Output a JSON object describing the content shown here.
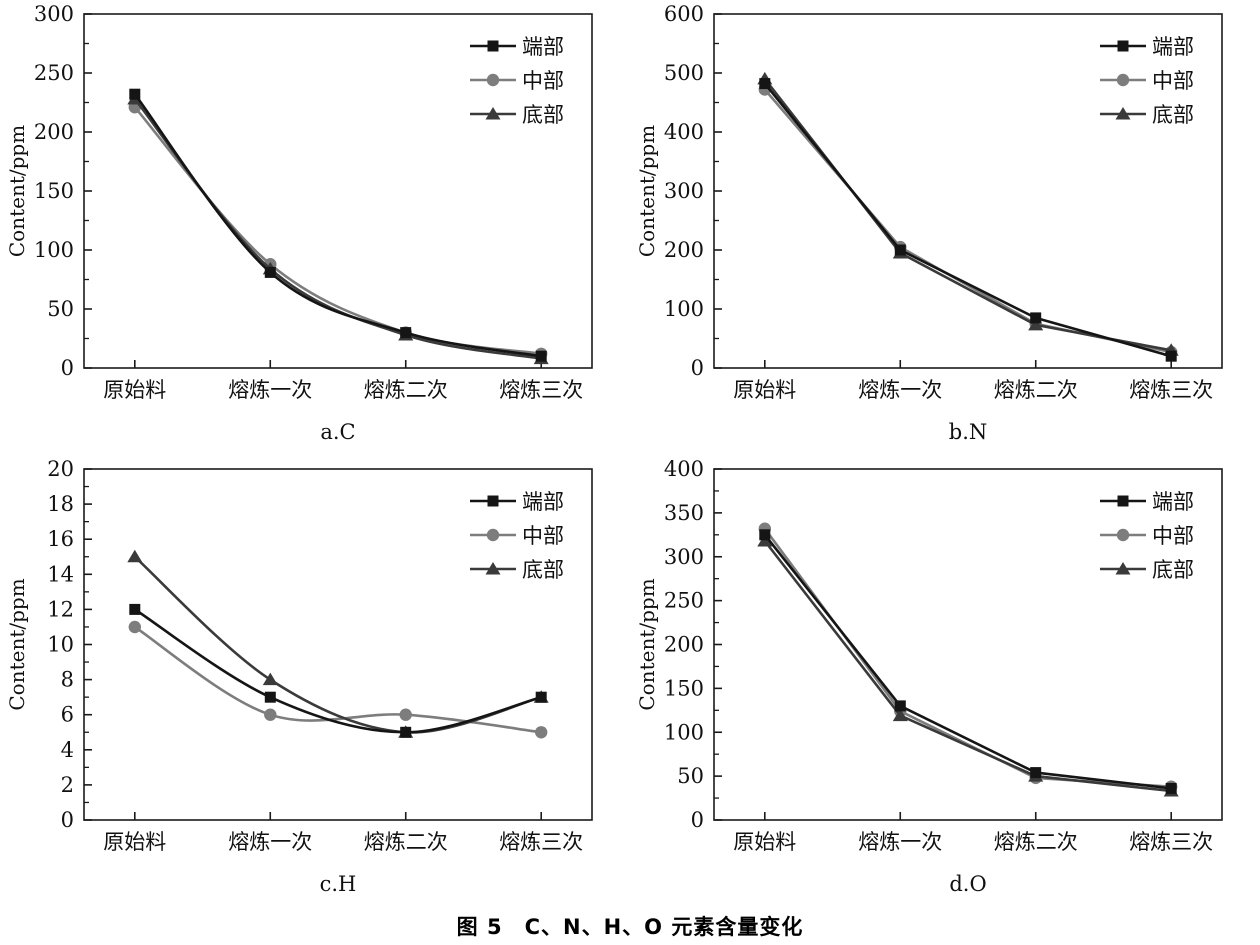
{
  "figure": {
    "caption": "图 5　C、N、H、O 元素含量变化"
  },
  "axis": {
    "ylabel": "Content/ppm",
    "categories": [
      "原始料",
      "熔炼一次",
      "熔炼二次",
      "熔炼三次"
    ]
  },
  "legend": {
    "labels": [
      "端部",
      "中部",
      "底部"
    ]
  },
  "colors": {
    "duanbu": "#151515",
    "zhongbu": "#7d7d7d",
    "dibu": "#3a3a3a",
    "axis": "#1a1a1a"
  },
  "chart_data": [
    {
      "type": "line",
      "subtitle": "a.C",
      "element": "C",
      "ylabel": "Content/ppm",
      "categories": [
        "原始料",
        "熔炼一次",
        "熔炼二次",
        "熔炼三次"
      ],
      "ylim": [
        0,
        300
      ],
      "ytick": 50,
      "smooth": true,
      "grid": false,
      "legend_position": "top-right",
      "series": [
        {
          "name": "端部",
          "marker": "square",
          "color": "#151515",
          "values": [
            232,
            81,
            30,
            10
          ]
        },
        {
          "name": "中部",
          "marker": "circle",
          "color": "#7d7d7d",
          "values": [
            221,
            88,
            30,
            12
          ]
        },
        {
          "name": "底部",
          "marker": "triangle",
          "color": "#3a3a3a",
          "values": [
            228,
            84,
            28,
            8
          ]
        }
      ]
    },
    {
      "type": "line",
      "subtitle": "b.N",
      "element": "N",
      "ylabel": "Content/ppm",
      "categories": [
        "原始料",
        "熔炼一次",
        "熔炼二次",
        "熔炼三次"
      ],
      "ylim": [
        0,
        600
      ],
      "ytick": 100,
      "smooth": false,
      "grid": false,
      "legend_position": "top-right",
      "series": [
        {
          "name": "端部",
          "marker": "square",
          "color": "#151515",
          "values": [
            482,
            200,
            85,
            20
          ]
        },
        {
          "name": "中部",
          "marker": "circle",
          "color": "#7d7d7d",
          "values": [
            472,
            205,
            75,
            27
          ]
        },
        {
          "name": "底部",
          "marker": "triangle",
          "color": "#3a3a3a",
          "values": [
            490,
            195,
            73,
            30
          ]
        }
      ]
    },
    {
      "type": "line",
      "subtitle": "c.H",
      "element": "H",
      "ylabel": "Content/ppm",
      "categories": [
        "原始料",
        "熔炼一次",
        "熔炼二次",
        "熔炼三次"
      ],
      "ylim": [
        0,
        20
      ],
      "ytick": 2,
      "smooth": true,
      "grid": false,
      "legend_position": "top-right",
      "series": [
        {
          "name": "端部",
          "marker": "square",
          "color": "#151515",
          "values": [
            12,
            7,
            5,
            7
          ]
        },
        {
          "name": "中部",
          "marker": "circle",
          "color": "#7d7d7d",
          "values": [
            11,
            6,
            6,
            5
          ]
        },
        {
          "name": "底部",
          "marker": "triangle",
          "color": "#3a3a3a",
          "values": [
            15,
            8,
            5,
            7
          ]
        }
      ]
    },
    {
      "type": "line",
      "subtitle": "d.O",
      "element": "O",
      "ylabel": "Content/ppm",
      "categories": [
        "原始料",
        "熔炼一次",
        "熔炼二次",
        "熔炼三次"
      ],
      "ylim": [
        0,
        400
      ],
      "ytick": 50,
      "smooth": false,
      "grid": false,
      "legend_position": "top-right",
      "series": [
        {
          "name": "端部",
          "marker": "square",
          "color": "#151515",
          "values": [
            325,
            130,
            54,
            36
          ]
        },
        {
          "name": "中部",
          "marker": "circle",
          "color": "#7d7d7d",
          "values": [
            332,
            124,
            48,
            38
          ]
        },
        {
          "name": "底部",
          "marker": "triangle",
          "color": "#3a3a3a",
          "values": [
            318,
            119,
            50,
            33
          ]
        }
      ]
    }
  ]
}
